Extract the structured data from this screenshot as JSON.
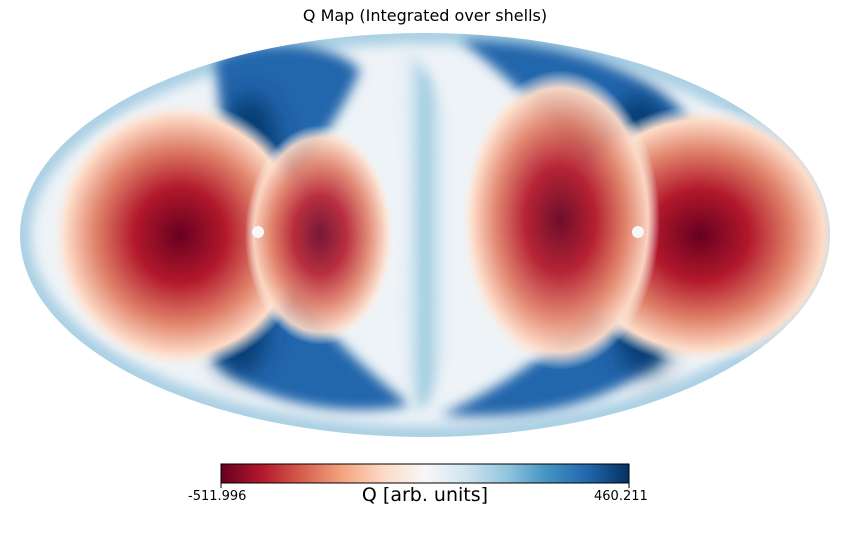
{
  "title": "Q Map (Integrated over shells)",
  "chart_data": {
    "type": "heatmap",
    "projection": "mollweide",
    "title": "Q Map (Integrated over shells)",
    "colormap": "RdBu",
    "colorbar": {
      "label": "Q [arb. units]",
      "min": -511.996,
      "max": 460.211,
      "min_label": "-511.996",
      "max_label": "460.211",
      "placement": "bottom",
      "stops": [
        "#67001f",
        "#b2182b",
        "#d6604d",
        "#f4a582",
        "#fddbc7",
        "#f7f7f7",
        "#d1e5f0",
        "#92c5de",
        "#4393c3",
        "#2166ac",
        "#053061"
      ]
    }
  }
}
